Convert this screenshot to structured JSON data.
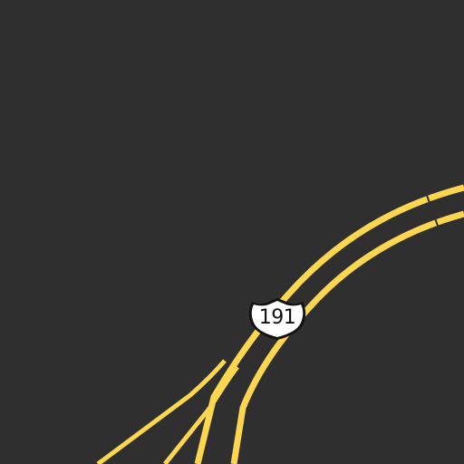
{
  "map": {
    "background_color": "#2f2f2f",
    "road_color": "#fdd64f",
    "route_shield": {
      "label": "191",
      "type": "us-highway-shield",
      "fill": "#ffffff",
      "outline": "#111111"
    }
  }
}
